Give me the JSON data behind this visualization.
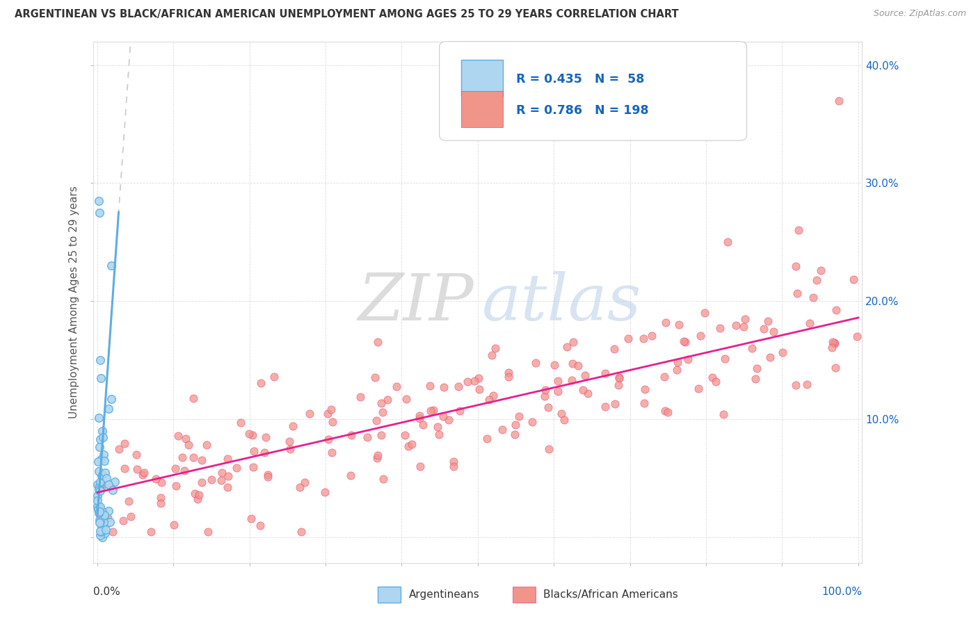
{
  "title": "ARGENTINEAN VS BLACK/AFRICAN AMERICAN UNEMPLOYMENT AMONG AGES 25 TO 29 YEARS CORRELATION CHART",
  "source": "Source: ZipAtlas.com",
  "ylabel": "Unemployment Among Ages 25 to 29 years",
  "legend_label1": "Argentineans",
  "legend_label2": "Blacks/African Americans",
  "R1": 0.435,
  "N1": 58,
  "R2": 0.786,
  "N2": 198,
  "color_arg": "#7EB9E0",
  "color_arg_fill": "#AED6F1",
  "color_arg_edge": "#5DADE2",
  "color_baa": "#F1948A",
  "color_baa_fill": "#FADBD8",
  "color_baa_edge": "#EC407A",
  "color_blue_text": "#1565C0",
  "color_pink_line": "#E91E8C",
  "color_blue_line": "#5DADE2",
  "background_color": "#ffffff",
  "watermark_zip": "#c0c0c0",
  "watermark_atlas": "#b8cfe8",
  "grid_color": "#dddddd",
  "title_color": "#333333",
  "source_color": "#999999",
  "legend_border": "#cccccc",
  "xlim": [
    -0.005,
    1.005
  ],
  "ylim": [
    -0.022,
    0.42
  ],
  "yticks": [
    0.0,
    0.1,
    0.2,
    0.3,
    0.4
  ],
  "ytick_labels": [
    "",
    "10.0%",
    "20.0%",
    "30.0%",
    "40.0%"
  ],
  "xtick_positions": [
    0.0,
    0.1,
    0.2,
    0.3,
    0.4,
    0.5,
    0.6,
    0.7,
    0.8,
    0.9,
    1.0
  ],
  "arg_intercept": 0.018,
  "arg_slope": 9.2,
  "arg_line_start": 0.0,
  "arg_line_end": 0.028,
  "baa_intercept": 0.038,
  "baa_slope": 0.148,
  "baa_line_start": 0.0,
  "baa_line_end": 1.0
}
